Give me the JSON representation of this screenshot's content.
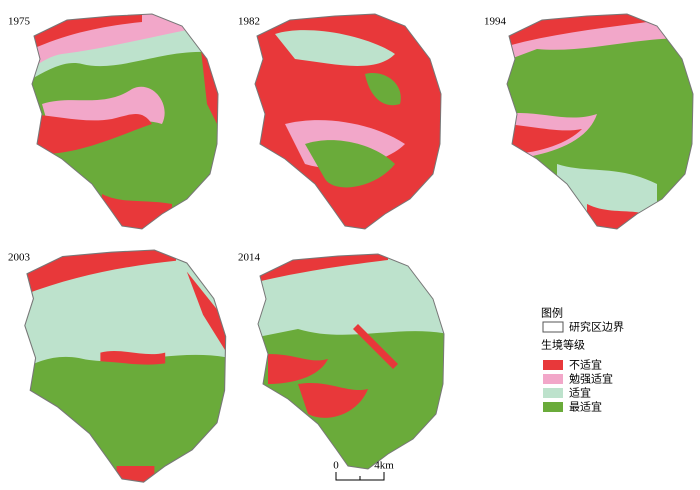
{
  "panels": [
    {
      "year": "1975"
    },
    {
      "year": "1982"
    },
    {
      "year": "1994"
    },
    {
      "year": "2003"
    },
    {
      "year": "2014"
    }
  ],
  "legend": {
    "title": "图例",
    "boundary": "研究区边界",
    "grade_title": "生境等级",
    "classes": [
      "不适宜",
      "勉强适宜",
      "适宜",
      "最适宜"
    ]
  },
  "scale_bar": {
    "labels": [
      "0",
      "4km"
    ]
  }
}
